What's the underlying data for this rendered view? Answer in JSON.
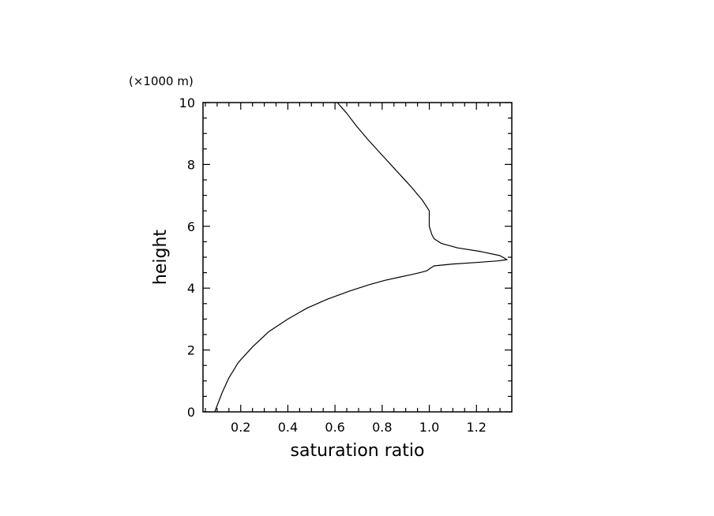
{
  "chart_data": {
    "type": "line",
    "title": "",
    "xlabel": "saturation ratio",
    "ylabel": "height",
    "y_unit_label": "(×1000 m)",
    "xlim": [
      0.04,
      1.35
    ],
    "ylim": [
      0,
      10
    ],
    "x_ticks": [
      0.2,
      0.4,
      0.6,
      0.8,
      1.0,
      1.2
    ],
    "x_tick_labels": [
      "0.2",
      "0.4",
      "0.6",
      "0.8",
      "1.0",
      "1.2"
    ],
    "y_ticks": [
      0,
      2,
      4,
      6,
      8,
      10
    ],
    "y_tick_labels": [
      "0",
      "2",
      "4",
      "6",
      "8",
      "10"
    ],
    "grid": false,
    "series": [
      {
        "color": "#000000",
        "x": [
          0.09,
          0.12,
          0.15,
          0.19,
          0.25,
          0.32,
          0.4,
          0.48,
          0.57,
          0.66,
          0.74,
          0.81,
          0.87,
          0.92,
          0.96,
          0.99,
          1.0,
          1.02,
          1.1,
          1.2,
          1.29,
          1.33,
          1.3,
          1.22,
          1.12,
          1.05,
          1.02,
          1.01,
          1.0,
          1.0,
          0.97,
          0.92,
          0.86,
          0.8,
          0.74,
          0.69,
          0.65,
          0.61
        ],
        "y": [
          0.0,
          0.6,
          1.1,
          1.6,
          2.1,
          2.6,
          3.0,
          3.35,
          3.65,
          3.9,
          4.1,
          4.25,
          4.35,
          4.43,
          4.5,
          4.56,
          4.62,
          4.72,
          4.78,
          4.83,
          4.88,
          4.92,
          5.05,
          5.18,
          5.3,
          5.45,
          5.6,
          5.75,
          6.0,
          6.5,
          6.85,
          7.3,
          7.8,
          8.3,
          8.8,
          9.25,
          9.65,
          10.0
        ]
      }
    ]
  }
}
